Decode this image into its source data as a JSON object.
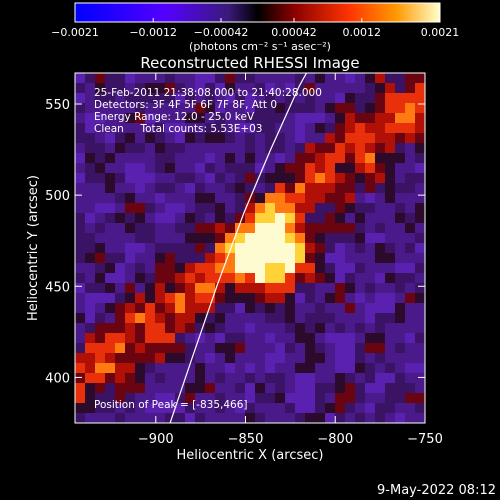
{
  "chart_data": {
    "type": "heatmap",
    "title": "Reconstructed RHESSI Image",
    "xlabel": "Heliocentric X (arcsec)",
    "ylabel": "Heliocentric Y (arcsec)",
    "xlim": [
      -945,
      -750
    ],
    "ylim": [
      375,
      567
    ],
    "x_ticks": [
      -900,
      -850,
      -800,
      -750
    ],
    "x_tick_labels": [
      "−900",
      "−850",
      "−800",
      "−750"
    ],
    "y_ticks": [
      400,
      450,
      500,
      550
    ],
    "y_tick_labels": [
      "400",
      "450",
      "500",
      "550"
    ],
    "colorbar": {
      "range": [
        -0.0021,
        0.0021
      ],
      "tick_values": [
        -0.0021,
        -0.0012,
        -0.00042,
        0.00042,
        0.0012,
        0.0021
      ],
      "tick_labels": [
        "−0.0021",
        "−0.0012",
        "−0.00042",
        "0.00042",
        "0.0012",
        "0.0021"
      ],
      "units": "(photons cm⁻² s⁻¹ asec⁻²)"
    },
    "annotations": [
      "25-Feb-2011 21:38:08.000 to 21:40:28.000",
      "Detectors: 3F 4F 5F 6F 7F 8F, Att 0",
      "Energy Range: 12.0 - 25.0 keV",
      "Clean     Total counts: 5.53E+03"
    ],
    "peak_label": "Position of Peak = [-835,466]",
    "peak": [
      -835,
      466
    ],
    "limb_arc_points": [
      [
        -892,
        375
      ],
      [
        -880,
        410
      ],
      [
        -866,
        450
      ],
      [
        -851,
        490
      ],
      [
        -836,
        525
      ],
      [
        -820,
        560
      ],
      [
        -816,
        567
      ]
    ],
    "grid": false
  },
  "footer": {
    "timestamp": "9-May-2022 08:12"
  }
}
